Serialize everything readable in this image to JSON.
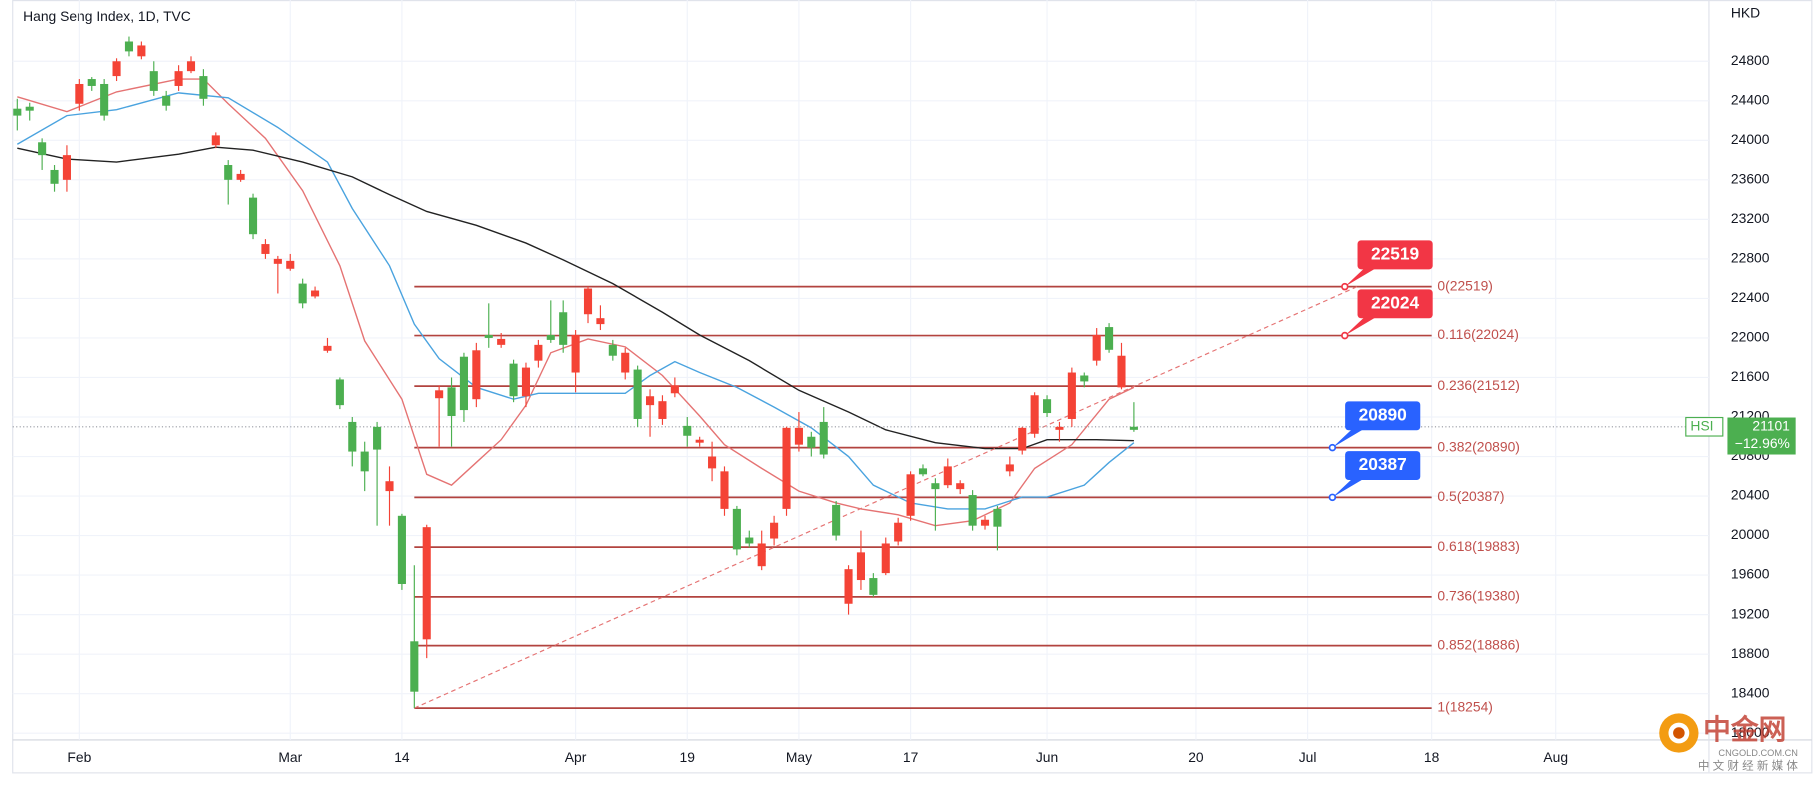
{
  "chart_data": {
    "type": "candlestick",
    "title": "Hang Seng Index, 1D, TVC",
    "currency": "HKD",
    "up_color": "#4caf50",
    "down_color": "#f44336",
    "grid": true,
    "xlim": [
      -0.37,
      136.35
    ],
    "xticks": [
      {
        "value": 5,
        "label": "Feb"
      },
      {
        "value": 22,
        "label": "Mar"
      },
      {
        "value": 31,
        "label": "14"
      },
      {
        "value": 45,
        "label": "Apr"
      },
      {
        "value": 54,
        "label": "19"
      },
      {
        "value": 63,
        "label": "May"
      },
      {
        "value": 72,
        "label": "17"
      },
      {
        "value": 83,
        "label": "Jun"
      },
      {
        "value": 95,
        "label": "20"
      },
      {
        "value": 104,
        "label": "Jul"
      },
      {
        "value": 114,
        "label": "18"
      },
      {
        "value": 124,
        "label": "Aug"
      }
    ],
    "ylim": [
      17932,
      25420
    ],
    "yticks": [
      18000,
      18400,
      18800,
      19200,
      19600,
      20000,
      20400,
      20800,
      21200,
      21600,
      22000,
      22400,
      22800,
      23200,
      23600,
      24000,
      24400,
      24800
    ],
    "open": [
      24250,
      24300,
      23850,
      23560,
      23850,
      24570,
      24550,
      24250,
      24800,
      24900,
      24960,
      24500,
      24350,
      24700,
      24800,
      24420,
      24050,
      23600,
      23660,
      23050,
      22950,
      22800,
      22780,
      22350,
      22480,
      21920,
      21320,
      20850,
      20650,
      20870,
      20550,
      19510,
      18420,
      20085,
      21470,
      21210,
      21270,
      21875,
      22000,
      21990,
      21410,
      21700,
      21930,
      21980,
      21930,
      22030,
      22500,
      22200,
      21820,
      21850,
      21180,
      21410,
      21360,
      21520,
      21010,
      20970,
      20800,
      20650,
      19860,
      19920,
      19920,
      20130,
      21090,
      21090,
      20890,
      20820,
      20000,
      19660,
      19830,
      19400,
      19920,
      20130,
      20620,
      20620,
      20470,
      20700,
      20530,
      20100,
      20160,
      20090,
      20720,
      21090,
      21420,
      21240,
      21100,
      21650,
      21560,
      22030,
      21880,
      21820,
      21070
    ],
    "high": [
      24420,
      24380,
      24020,
      23750,
      23950,
      24620,
      24640,
      24620,
      24830,
      25050,
      25000,
      24800,
      24500,
      24760,
      24850,
      24720,
      24080,
      23800,
      23700,
      23460,
      23000,
      22830,
      22850,
      22600,
      22520,
      22000,
      21600,
      21200,
      20950,
      21150,
      20700,
      20220,
      19700,
      20110,
      21520,
      21600,
      21850,
      21950,
      22350,
      22050,
      21780,
      21750,
      21980,
      22380,
      22380,
      22080,
      22520,
      22330,
      21980,
      21900,
      21720,
      21480,
      21420,
      21600,
      21200,
      21000,
      20950,
      20700,
      20300,
      20050,
      20050,
      20200,
      21100,
      21250,
      21050,
      21300,
      20350,
      19700,
      20050,
      19620,
      19980,
      20180,
      20650,
      20720,
      20580,
      20780,
      20560,
      20460,
      20200,
      20300,
      20800,
      21100,
      21450,
      21420,
      21150,
      21700,
      21650,
      22100,
      22150,
      21950,
      21350
    ],
    "low": [
      24100,
      24200,
      23700,
      23480,
      23480,
      24300,
      24500,
      24200,
      24600,
      24850,
      24820,
      24450,
      24300,
      24500,
      24680,
      24350,
      23920,
      23350,
      23580,
      23000,
      22800,
      22450,
      22680,
      22300,
      22400,
      21850,
      21280,
      20700,
      20450,
      20100,
      20100,
      19450,
      18254,
      18760,
      20900,
      20900,
      21150,
      21300,
      21900,
      21900,
      21350,
      21300,
      21700,
      21950,
      21850,
      21450,
      22150,
      22080,
      21770,
      21580,
      21100,
      21000,
      21120,
      21400,
      20900,
      20900,
      20550,
      20200,
      19800,
      19880,
      19650,
      19900,
      20200,
      20850,
      20800,
      20780,
      19950,
      19200,
      19450,
      19380,
      19600,
      19900,
      20150,
      20600,
      20050,
      20480,
      20420,
      20050,
      20060,
      19850,
      20600,
      20820,
      20990,
      21200,
      20950,
      21100,
      21500,
      21720,
      21850,
      21480,
      21050
    ],
    "close": [
      24320,
      24340,
      23980,
      23700,
      23600,
      24370,
      24620,
      24570,
      24650,
      25000,
      24850,
      24700,
      24450,
      24550,
      24700,
      24650,
      23950,
      23750,
      23600,
      23420,
      22850,
      22750,
      22700,
      22550,
      22420,
      21870,
      21580,
      21150,
      20850,
      21100,
      20450,
      20200,
      18930,
      18950,
      21390,
      21500,
      21810,
      21380,
      22030,
      21930,
      21740,
      21410,
      21770,
      22030,
      22260,
      21650,
      22240,
      22140,
      21930,
      21650,
      21680,
      21320,
      21180,
      21440,
      21110,
      20940,
      20680,
      20270,
      20270,
      19980,
      19690,
      19970,
      20270,
      20920,
      21000,
      21150,
      20310,
      19310,
      19550,
      19570,
      19620,
      19940,
      20200,
      20680,
      20530,
      20510,
      20470,
      20410,
      20100,
      20270,
      20650,
      20860,
      21030,
      21380,
      21070,
      21180,
      21620,
      21770,
      22110,
      21500,
      21101
    ],
    "series": [
      {
        "color": "#e57373",
        "x": [
          0,
          4,
          8,
          13,
          15,
          17,
          20,
          23,
          26,
          28,
          31,
          33,
          35,
          37,
          39,
          41,
          43,
          46,
          49,
          52,
          55,
          57,
          60,
          63,
          66,
          68,
          71,
          74,
          77,
          80,
          82,
          85,
          88,
          90
        ],
        "values": [
          24440,
          24290,
          24490,
          24620,
          24620,
          24370,
          24020,
          23490,
          22730,
          21970,
          21380,
          20620,
          20510,
          20740,
          20970,
          21320,
          21850,
          21990,
          21910,
          21620,
          21210,
          20920,
          20680,
          20450,
          20330,
          20270,
          20210,
          20100,
          20150,
          20330,
          20680,
          20920,
          21380,
          21500
        ]
      },
      {
        "color": "#4aa3df",
        "x": [
          0,
          4,
          8,
          13,
          17,
          21,
          25,
          27,
          30,
          32,
          34,
          37,
          40,
          42,
          45,
          49,
          51,
          53,
          55,
          58,
          61,
          64,
          67,
          69,
          72,
          75,
          78,
          81,
          83,
          86,
          88,
          90
        ],
        "values": [
          23960,
          24250,
          24310,
          24480,
          24430,
          24130,
          23780,
          23310,
          22730,
          22140,
          21790,
          21500,
          21380,
          21440,
          21440,
          21440,
          21620,
          21760,
          21650,
          21500,
          21300,
          21090,
          20800,
          20510,
          20330,
          20270,
          20270,
          20390,
          20390,
          20510,
          20740,
          20940
        ]
      },
      {
        "color": "#222222",
        "x": [
          0,
          4,
          8,
          13,
          16,
          19,
          23,
          27,
          30,
          33,
          37,
          41,
          44,
          48,
          52,
          55,
          59,
          63,
          67,
          70,
          74,
          78,
          81,
          83,
          87,
          90
        ],
        "values": [
          23920,
          23810,
          23780,
          23860,
          23930,
          23900,
          23780,
          23630,
          23450,
          23280,
          23140,
          22960,
          22790,
          22550,
          22260,
          22030,
          21770,
          21470,
          21250,
          21070,
          20940,
          20880,
          20880,
          20970,
          20970,
          20960
        ]
      }
    ],
    "fib": {
      "color": "#b2433f",
      "label_color": "#c0504d",
      "x_range": [
        32,
        114
      ],
      "levels": [
        {
          "price": 22519,
          "label": "0(22519)"
        },
        {
          "price": 22024,
          "label": "0.116(22024)"
        },
        {
          "price": 21512,
          "label": "0.236(21512)"
        },
        {
          "price": 20890,
          "label": "0.382(20890)"
        },
        {
          "price": 20387,
          "label": "0.5(20387)"
        },
        {
          "price": 19883,
          "label": "0.618(19883)"
        },
        {
          "price": 19380,
          "label": "0.736(19380)"
        },
        {
          "price": 18886,
          "label": "0.852(18886)"
        },
        {
          "price": 18254,
          "label": "1(18254)"
        }
      ]
    },
    "trend_line": {
      "color": "#e57373",
      "x": [
        32,
        108
      ],
      "values": [
        18254,
        22519
      ]
    },
    "callouts": [
      {
        "x": 107,
        "value": 22519,
        "color": "#f23645"
      },
      {
        "x": 107,
        "value": 22024,
        "color": "#f23645"
      },
      {
        "x": 106,
        "value": 20890,
        "color": "#2962ff"
      },
      {
        "x": 106,
        "value": 20387,
        "color": "#2962ff"
      }
    ],
    "last": {
      "symbol": "HSI",
      "value": 21101,
      "change": {
        "value": -12.96,
        "label": "−12.96%"
      },
      "color": "#4caf50"
    },
    "watermark": {
      "name": "中金网",
      "site": "CNGOLD.COM.CN",
      "slogan": "中 文 财 经 新 媒 体"
    }
  }
}
